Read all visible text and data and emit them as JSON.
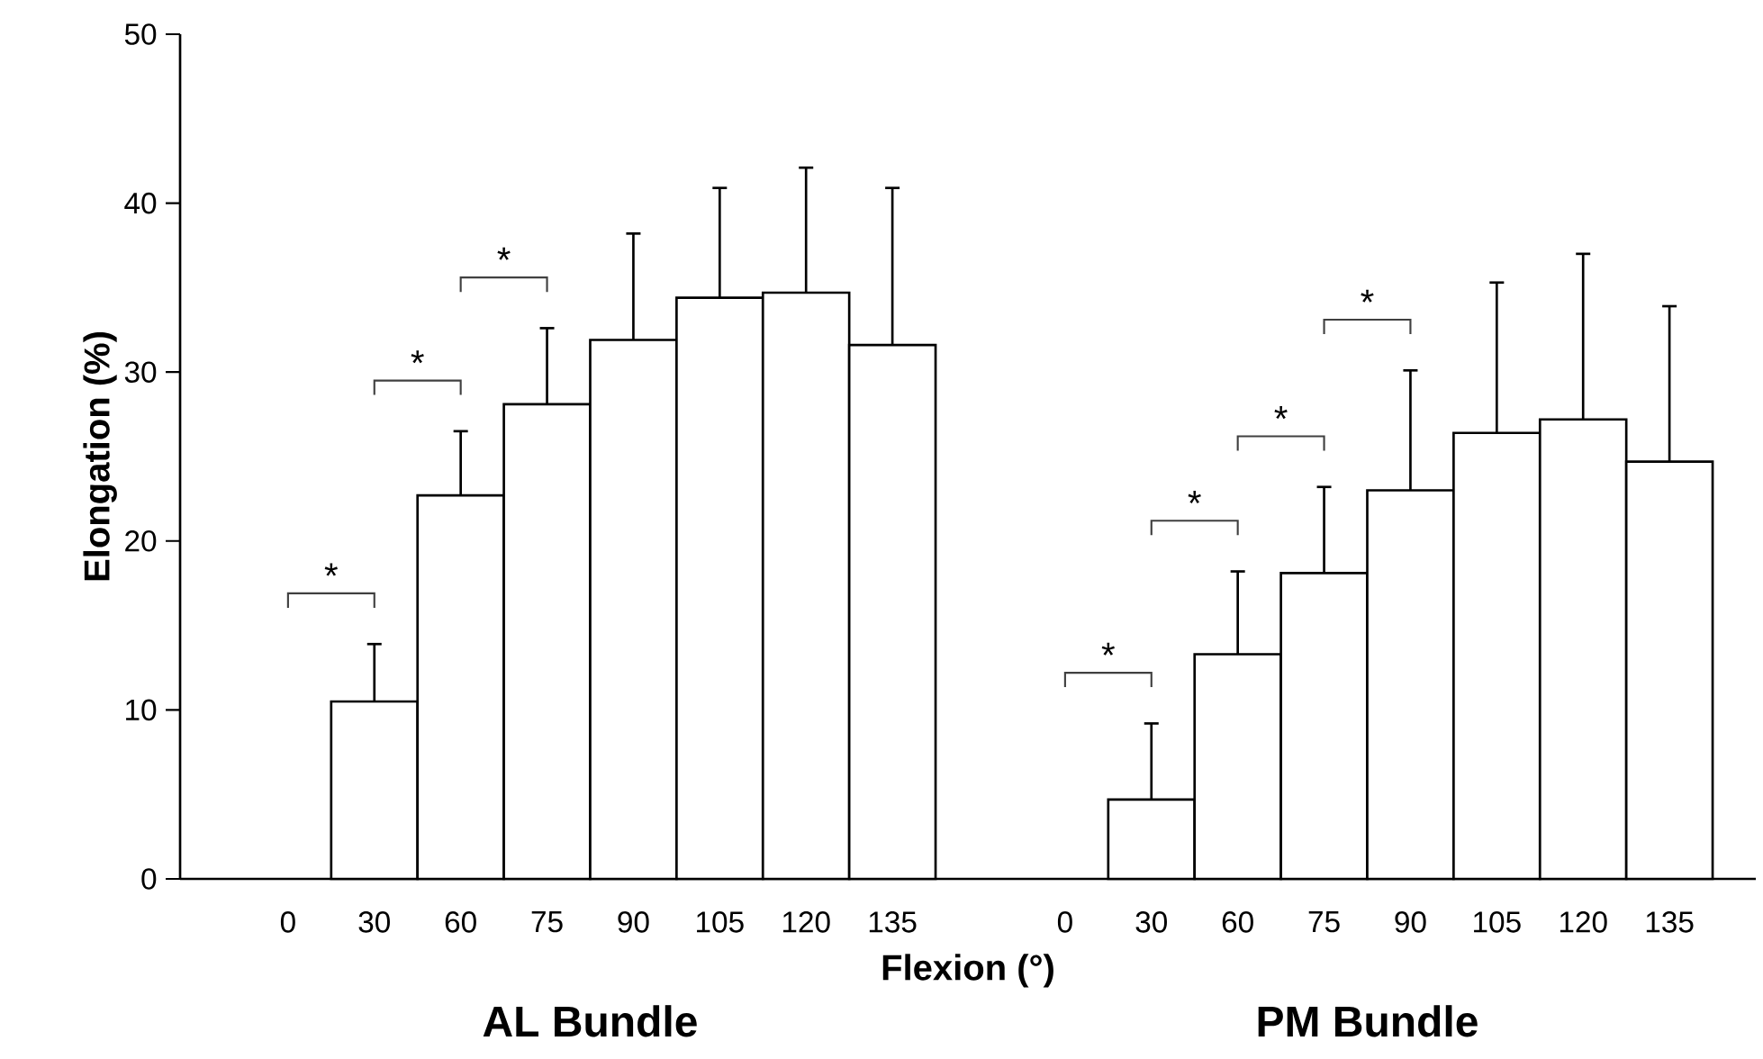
{
  "chart_data": {
    "type": "bar",
    "xlabel": "Flexion (°)",
    "ylabel": "Elongation (%)",
    "categories": [
      "0",
      "30",
      "60",
      "75",
      "90",
      "105",
      "120",
      "135",
      null,
      "0",
      "30",
      "60",
      "75",
      "90",
      "105",
      "120",
      "135"
    ],
    "values": [
      null,
      10.5,
      22.7,
      28.1,
      31.9,
      34.4,
      34.7,
      31.6,
      null,
      null,
      4.7,
      13.3,
      18.1,
      23.0,
      26.4,
      27.2,
      24.7
    ],
    "errors": [
      null,
      [
        10.5,
        13.9
      ],
      [
        22.7,
        26.5
      ],
      [
        28.1,
        32.6
      ],
      [
        31.9,
        38.2
      ],
      [
        34.4,
        40.9
      ],
      [
        34.7,
        42.1
      ],
      [
        31.6,
        40.9
      ],
      null,
      null,
      [
        4.7,
        9.2
      ],
      [
        13.3,
        18.2
      ],
      [
        18.1,
        23.2
      ],
      [
        23.0,
        30.1
      ],
      [
        26.4,
        35.3
      ],
      [
        27.2,
        37.0
      ],
      [
        24.7,
        33.9
      ]
    ],
    "color": "#ffffff",
    "ylim": [
      0,
      50
    ],
    "yticks": [
      0,
      10,
      20,
      30,
      40,
      50
    ],
    "annotations": [
      "*",
      "*",
      "*",
      "*",
      "*",
      "*",
      "*",
      "AL Bundle",
      "PM Bundle"
    ]
  }
}
